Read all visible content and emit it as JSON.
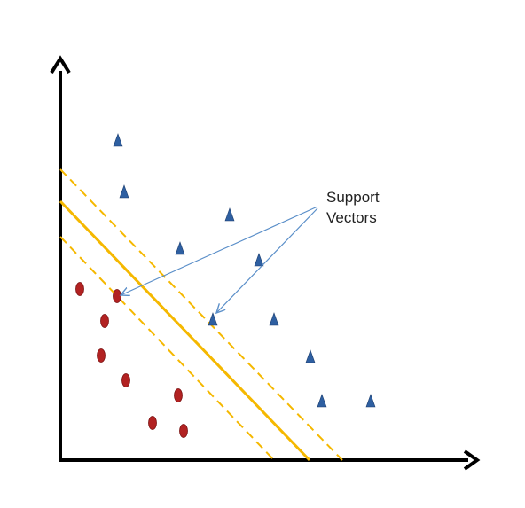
{
  "annotation": {
    "line1": "Support",
    "line2": "Vectors"
  },
  "colors": {
    "axis": "#000000",
    "hyperplane": "#F5B800",
    "margin": "#F5B800",
    "class_circle": "#B22222",
    "class_circle_edge": "#7A1010",
    "class_triangle": "#2E5FA1",
    "arrow": "#5B8FC9"
  },
  "icons": {
    "circle_class": "red-ellipse-marker",
    "triangle_class": "blue-triangle-marker",
    "arrow": "thin-arrow"
  }
}
